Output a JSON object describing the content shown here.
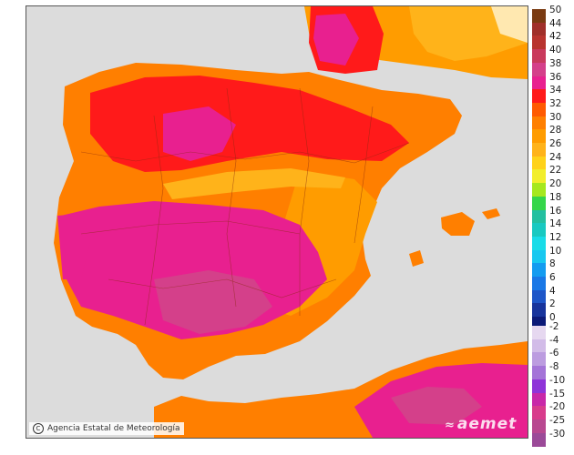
{
  "map": {
    "region": "Iberian Peninsula, Balearic Islands and North Africa",
    "variable": "temperature",
    "dominant_colors": {
      "sea": "#dcdcdc",
      "hot_magenta": "#e8208f",
      "red": "#ff1a1a",
      "orange": "#ff7f00",
      "light_orange": "#ffb31a",
      "yellow": "#ffd21a"
    }
  },
  "credit": {
    "text": "Agencia Estatal de Meteorología"
  },
  "brand": {
    "text": "aemet"
  },
  "legend": {
    "positive": [
      {
        "label": "50",
        "color": "#7a3b12"
      },
      {
        "label": "44",
        "color": "#a0302a"
      },
      {
        "label": "42",
        "color": "#b8342f"
      },
      {
        "label": "40",
        "color": "#c93a5c"
      },
      {
        "label": "38",
        "color": "#d4408a"
      },
      {
        "label": "36",
        "color": "#e8208f"
      },
      {
        "label": "34",
        "color": "#ff1a1a"
      },
      {
        "label": "32",
        "color": "#ff5a00"
      },
      {
        "label": "30",
        "color": "#ff7f00"
      },
      {
        "label": "28",
        "color": "#ff9c00"
      },
      {
        "label": "26",
        "color": "#ffb31a"
      },
      {
        "label": "24",
        "color": "#ffd21a"
      },
      {
        "label": "22",
        "color": "#f2ee2c"
      },
      {
        "label": "20",
        "color": "#a6e81e"
      },
      {
        "label": "18",
        "color": "#35d64a"
      },
      {
        "label": "16",
        "color": "#24c0a0"
      },
      {
        "label": "14",
        "color": "#19c9c1"
      },
      {
        "label": "12",
        "color": "#19dce8"
      },
      {
        "label": "10",
        "color": "#18c8f0"
      },
      {
        "label": "8",
        "color": "#149cf0"
      },
      {
        "label": "6",
        "color": "#1a78e6"
      },
      {
        "label": "4",
        "color": "#1e56c8"
      },
      {
        "label": "2",
        "color": "#18349c"
      },
      {
        "label": "0",
        "color": "#0c1a78"
      }
    ],
    "negative": [
      {
        "label": "-2",
        "color": "#e6d8f0"
      },
      {
        "label": "-4",
        "color": "#d2bce8"
      },
      {
        "label": "-6",
        "color": "#bc9ce0"
      },
      {
        "label": "-8",
        "color": "#a474d8"
      },
      {
        "label": "-10",
        "color": "#8e34d8"
      },
      {
        "label": "-15",
        "color": "#c828a8"
      },
      {
        "label": "-20",
        "color": "#d83c8c"
      },
      {
        "label": "-25",
        "color": "#b84890"
      },
      {
        "label": "-30",
        "color": "#9b4a98"
      }
    ]
  }
}
